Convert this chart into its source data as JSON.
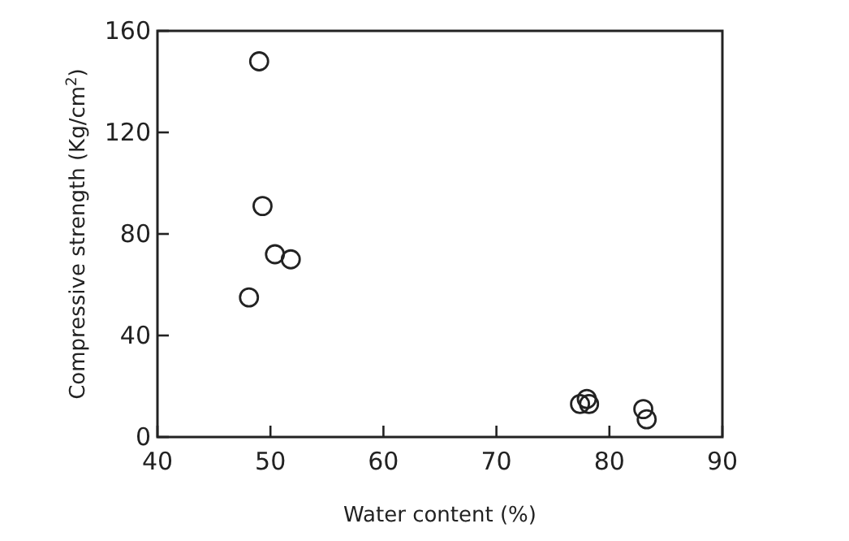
{
  "chart_data": {
    "type": "scatter",
    "xlabel": "Water content (%)",
    "ylabel": "Compressive strength (Kg/cm$^{2}$)",
    "x": [
      49,
      49.3,
      50.4,
      51.8,
      48.1,
      77.4,
      78,
      78.2,
      83,
      83.3
    ],
    "values": [
      148,
      91,
      72,
      70,
      55,
      13,
      15,
      13,
      11,
      7
    ],
    "color": "#222222",
    "marker": "circle",
    "xlim": [
      40,
      90
    ],
    "xticks": [
      40,
      50,
      60,
      70,
      80,
      90
    ],
    "ylim": [
      0,
      160
    ],
    "yticks": [
      0,
      40,
      80,
      120,
      160
    ],
    "grid": false
  }
}
